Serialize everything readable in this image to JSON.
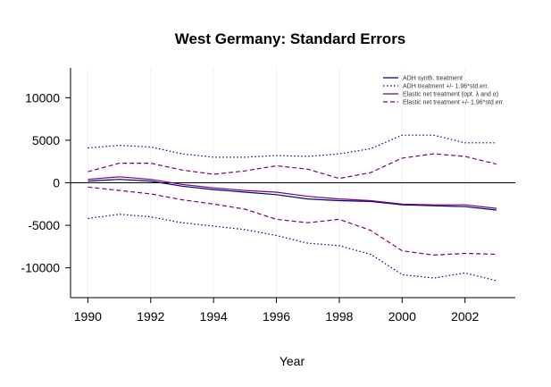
{
  "chart_data": {
    "type": "line",
    "title": "West Germany: Standard Errors",
    "xlabel": "Year",
    "ylabel": "",
    "xlim": [
      1989.45,
      2003.6
    ],
    "ylim": [
      -13500,
      13500
    ],
    "x_ticks": [
      1990,
      1992,
      1994,
      1996,
      1998,
      2000,
      2002
    ],
    "y_ticks": [
      -10000,
      -5000,
      0,
      5000,
      10000
    ],
    "grid": "vertical-faint",
    "legend_position": "top-right",
    "x": [
      1990,
      1991,
      1992,
      1993,
      1994,
      1995,
      1996,
      1997,
      1998,
      1999,
      2000,
      2001,
      2002,
      2003
    ],
    "series": [
      {
        "name": "ADH synth. treatment",
        "color": "#000080",
        "dash": "solid",
        "values": [
          200,
          400,
          200,
          -400,
          -800,
          -1100,
          -1400,
          -1900,
          -2100,
          -2200,
          -2600,
          -2700,
          -2800,
          -3200
        ]
      },
      {
        "name": "ADH treatment +/- 1.96*std.err.",
        "color": "#000080",
        "dash": "dotted",
        "values": [
          4100,
          4400,
          4200,
          3400,
          3000,
          3000,
          3200,
          3100,
          3400,
          4000,
          5600,
          5600,
          4700,
          4700
        ]
      },
      {
        "name": "",
        "color": "#000080",
        "dash": "dotted",
        "values": [
          -4200,
          -3700,
          -4000,
          -4700,
          -5100,
          -5500,
          -6200,
          -7100,
          -7400,
          -8400,
          -10800,
          -11200,
          -10600,
          -11500
        ]
      },
      {
        "name": "Elastic net treatment (opt. λ and α)",
        "color": "#7b007b",
        "dash": "solid",
        "values": [
          400,
          700,
          400,
          -200,
          -600,
          -900,
          -1100,
          -1600,
          -1900,
          -2100,
          -2500,
          -2600,
          -2600,
          -3000
        ]
      },
      {
        "name": "Elastic net treatment +/- 1.96*std.err.",
        "color": "#7b007b",
        "dash": "dashed",
        "values": [
          1300,
          2300,
          2300,
          1500,
          1000,
          1400,
          2000,
          1600,
          500,
          1200,
          2900,
          3400,
          3100,
          2200
        ]
      },
      {
        "name": "",
        "color": "#7b007b",
        "dash": "dashed",
        "values": [
          -500,
          -900,
          -1300,
          -2000,
          -2500,
          -3100,
          -4300,
          -4700,
          -4300,
          -5600,
          -8000,
          -8500,
          -8300,
          -8400
        ]
      }
    ],
    "hline": {
      "y": 0,
      "color": "#000000"
    }
  }
}
